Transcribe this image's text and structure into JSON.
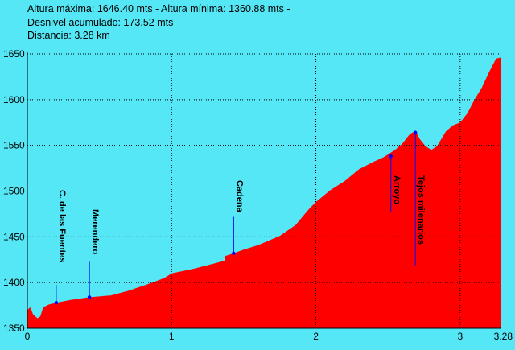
{
  "header": {
    "line1": "Altura máxima: 1646.40 mts - Altura mínima: 1360.88 mts -",
    "line2": "Desnivel acumulado: 173.52 mts",
    "line3": "Distancia: 3.28 km"
  },
  "colors": {
    "background": "#55e7f5",
    "fill": "#ff0000",
    "grid": "#000000",
    "marker": "#0000ff"
  },
  "chart_data": {
    "type": "area",
    "title": "",
    "xlabel": "",
    "ylabel": "",
    "xlim": [
      0,
      3.28
    ],
    "ylim": [
      1350,
      1650
    ],
    "grid": true,
    "x_ticks": [
      {
        "value": 0,
        "label": "0"
      },
      {
        "value": 1,
        "label": "1"
      },
      {
        "value": 2,
        "label": "2"
      },
      {
        "value": 3,
        "label": "3"
      },
      {
        "value": 3.28,
        "label": "3.28"
      }
    ],
    "y_ticks": [
      {
        "value": 1350,
        "label": "1350"
      },
      {
        "value": 1400,
        "label": "1400"
      },
      {
        "value": 1450,
        "label": "1450"
      },
      {
        "value": 1500,
        "label": "1500"
      },
      {
        "value": 1550,
        "label": "1550"
      },
      {
        "value": 1600,
        "label": "1600"
      },
      {
        "value": 1650,
        "label": "1650"
      }
    ],
    "profile": [
      [
        0.0,
        1370
      ],
      [
        0.02,
        1373
      ],
      [
        0.04,
        1365
      ],
      [
        0.07,
        1361
      ],
      [
        0.09,
        1363
      ],
      [
        0.11,
        1373
      ],
      [
        0.15,
        1376
      ],
      [
        0.2,
        1378
      ],
      [
        0.3,
        1381
      ],
      [
        0.43,
        1384
      ],
      [
        0.58,
        1386
      ],
      [
        0.7,
        1391
      ],
      [
        0.85,
        1399
      ],
      [
        0.95,
        1405
      ],
      [
        1.0,
        1410
      ],
      [
        1.15,
        1415
      ],
      [
        1.3,
        1421
      ],
      [
        1.37,
        1424
      ],
      [
        1.37,
        1429
      ],
      [
        1.39,
        1430
      ],
      [
        1.43,
        1432
      ],
      [
        1.5,
        1436
      ],
      [
        1.6,
        1441
      ],
      [
        1.75,
        1451
      ],
      [
        1.86,
        1463
      ],
      [
        1.95,
        1480
      ],
      [
        2.0,
        1488
      ],
      [
        2.1,
        1501
      ],
      [
        2.2,
        1511
      ],
      [
        2.3,
        1524
      ],
      [
        2.4,
        1532
      ],
      [
        2.47,
        1537
      ],
      [
        2.55,
        1545
      ],
      [
        2.6,
        1552
      ],
      [
        2.65,
        1562
      ],
      [
        2.69,
        1566
      ],
      [
        2.72,
        1557
      ],
      [
        2.76,
        1549
      ],
      [
        2.8,
        1545
      ],
      [
        2.84,
        1549
      ],
      [
        2.9,
        1565
      ],
      [
        2.95,
        1572
      ],
      [
        3.0,
        1575
      ],
      [
        3.05,
        1585
      ],
      [
        3.1,
        1600
      ],
      [
        3.15,
        1613
      ],
      [
        3.2,
        1630
      ],
      [
        3.25,
        1645
      ],
      [
        3.28,
        1646
      ]
    ],
    "waypoints": [
      {
        "label": "C. de las Fuentes",
        "x": 0.2,
        "y": 1378
      },
      {
        "label": "Merendero",
        "x": 0.43,
        "y": 1384
      },
      {
        "label": "Cadena",
        "x": 1.43,
        "y": 1432
      },
      {
        "label": "Arroyo",
        "x": 2.52,
        "y": 1538
      },
      {
        "label": "Tejos milenarios",
        "x": 2.69,
        "y": 1564
      }
    ]
  }
}
